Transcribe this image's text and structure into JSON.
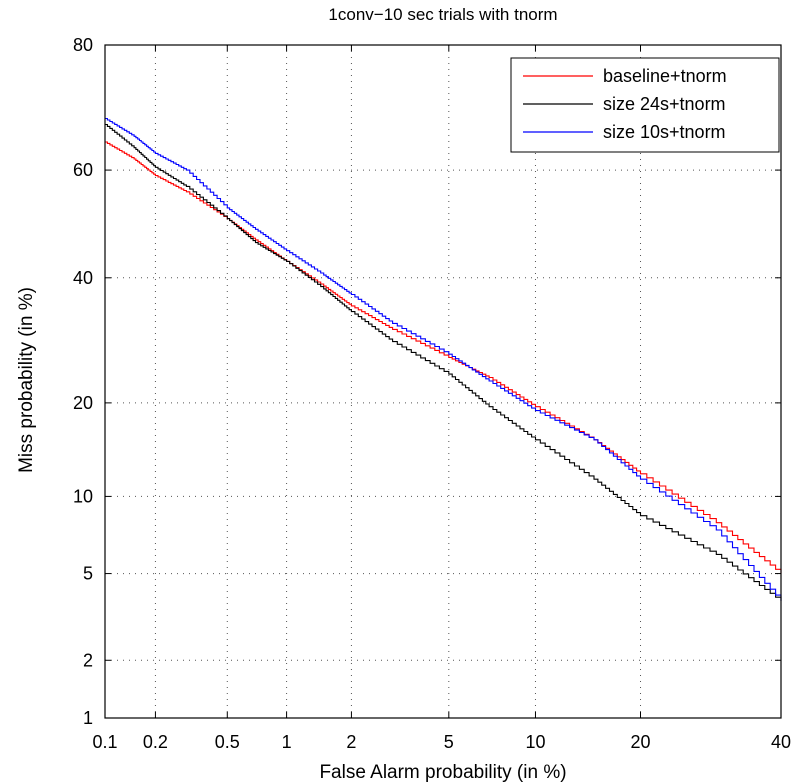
{
  "chart_data": {
    "type": "line",
    "title": "1conv−10 sec trials with tnorm",
    "xlabel": "False Alarm probability (in %)",
    "ylabel": "Miss probability (in %)",
    "xscale": "probit",
    "yscale": "probit",
    "xlim": [
      0.1,
      40
    ],
    "ylim": [
      1,
      80
    ],
    "xticks": [
      0.1,
      0.2,
      0.5,
      1,
      2,
      5,
      10,
      20,
      40
    ],
    "xtick_labels": [
      "0.1",
      "0.2",
      "0.5",
      "1",
      "2",
      "5",
      "10",
      "20",
      "40"
    ],
    "yticks": [
      1,
      2,
      5,
      10,
      20,
      40,
      60,
      80
    ],
    "ytick_labels": [
      "1",
      "2",
      "5",
      "10",
      "20",
      "40",
      "60",
      "80"
    ],
    "grid": true,
    "legend_position": "top-right",
    "series": [
      {
        "name": "baseline+tnorm",
        "color": "#ff0000",
        "x": [
          0.1,
          0.15,
          0.2,
          0.3,
          0.5,
          0.7,
          1,
          1.5,
          2,
          3,
          5,
          7,
          10,
          15,
          20,
          30,
          40
        ],
        "y": [
          65,
          62,
          59,
          56,
          51,
          47,
          43,
          38.5,
          35,
          31,
          26.5,
          23.5,
          19.5,
          15.5,
          12,
          8,
          5
        ]
      },
      {
        "name": "size 24s+tnorm",
        "color": "#000000",
        "x": [
          0.1,
          0.15,
          0.2,
          0.3,
          0.5,
          0.7,
          1,
          1.5,
          2,
          3,
          5,
          7,
          10,
          15,
          20,
          30,
          40
        ],
        "y": [
          68,
          64,
          60.5,
          57,
          51,
          46.5,
          43,
          38,
          34,
          29,
          24,
          19.5,
          15.5,
          11.5,
          8.5,
          6,
          3.8
        ]
      },
      {
        "name": "size 10s+tnorm",
        "color": "#0000ff",
        "x": [
          0.1,
          0.15,
          0.2,
          0.3,
          0.5,
          0.7,
          1,
          1.5,
          2,
          3,
          5,
          7,
          10,
          15,
          20,
          30,
          40
        ],
        "y": [
          69,
          66,
          63,
          60,
          53,
          49,
          45,
          40.5,
          37,
          32,
          27,
          23,
          19,
          15.5,
          11.5,
          7.5,
          3.8
        ]
      }
    ]
  }
}
